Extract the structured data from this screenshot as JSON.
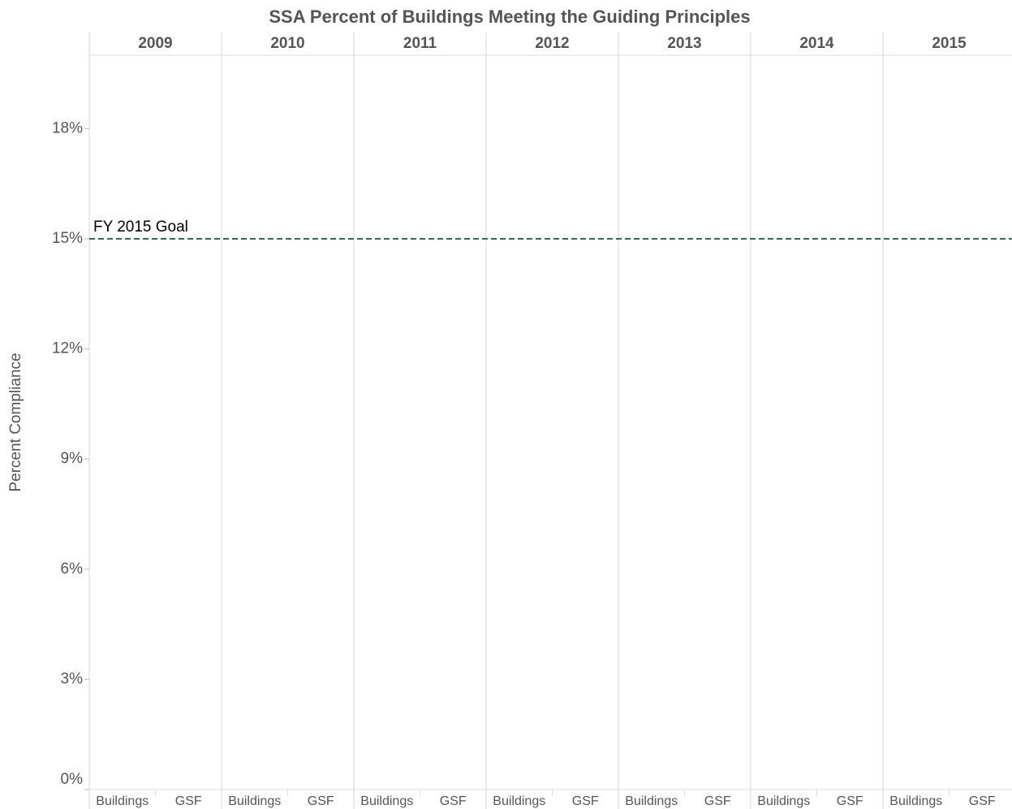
{
  "chart_data": {
    "type": "bar",
    "title": "SSA Percent of Buildings Meeting the Guiding Principles",
    "y_label": "Percent Compliance",
    "years": [
      "2009",
      "2010",
      "2011",
      "2012",
      "2013",
      "2014",
      "2015"
    ],
    "categories": [
      "Buildings",
      "GSF"
    ],
    "values": [
      [
        0,
        0
      ],
      [
        0,
        0
      ],
      [
        0,
        0
      ],
      [
        0,
        0
      ],
      [
        0,
        0
      ],
      [
        0,
        0
      ],
      [
        0,
        0
      ]
    ],
    "color": "#4e79a7",
    "ylim": [
      0,
      20
    ],
    "yticks": [
      {
        "value": 0,
        "label": "0%"
      },
      {
        "value": 3,
        "label": "3%"
      },
      {
        "value": 6,
        "label": "6%"
      },
      {
        "value": 9,
        "label": "9%"
      },
      {
        "value": 12,
        "label": "12%"
      },
      {
        "value": 15,
        "label": "15%"
      },
      {
        "value": 18,
        "label": "18%"
      }
    ],
    "reference_line": {
      "value": 15,
      "label": "FY 2015 Goal",
      "color": "#1f7a4a"
    }
  }
}
